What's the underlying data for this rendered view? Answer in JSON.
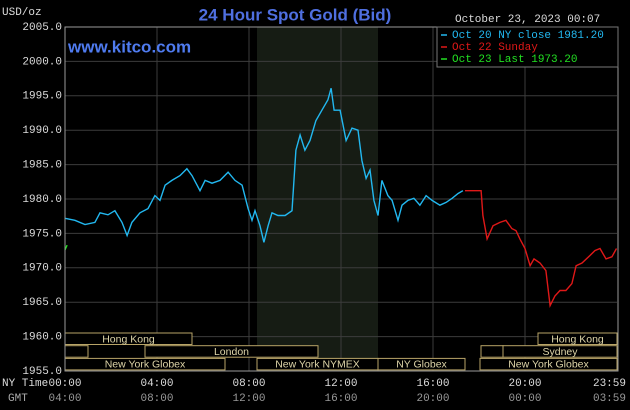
{
  "chart_data": {
    "type": "line",
    "title": "24 Hour Spot Gold (Bid)",
    "y_unit": "USD/oz",
    "timestamp": "October 23, 2023 00:07",
    "watermark": "www.kitco.com",
    "row_labels": [
      "NY Time",
      "GMT"
    ],
    "xlim": [
      0,
      24
    ],
    "xticks": [
      {
        "value": 0,
        "label": "00:00"
      },
      {
        "value": 4,
        "label": "04:00"
      },
      {
        "value": 8,
        "label": "08:00"
      },
      {
        "value": 12,
        "label": "12:00"
      },
      {
        "value": 16,
        "label": "16:00"
      },
      {
        "value": 20,
        "label": "20:00"
      },
      {
        "value": 23.98,
        "label": "23:59"
      }
    ],
    "gmt_ticks": [
      "04:00",
      "08:00",
      "12:00",
      "16:00",
      "20:00",
      "00:00",
      "03:59"
    ],
    "ylim": [
      1955,
      2005
    ],
    "yticks": [
      {
        "value": 1955,
        "label": "1955.0"
      },
      {
        "value": 1960,
        "label": "1960.0"
      },
      {
        "value": 1965,
        "label": "1965.0"
      },
      {
        "value": 1970,
        "label": "1970.0"
      },
      {
        "value": 1975,
        "label": "1975.0"
      },
      {
        "value": 1980,
        "label": "1980.0"
      },
      {
        "value": 1985,
        "label": "1985.0"
      },
      {
        "value": 1990,
        "label": "1990.0"
      },
      {
        "value": 1995,
        "label": "1995.0"
      },
      {
        "value": 2000,
        "label": "2000.0"
      },
      {
        "value": 2005,
        "label": "2005.0"
      }
    ],
    "grid": true,
    "sessions": [
      "Hong Kong",
      "London",
      "New York Globex",
      "New York NYMEX",
      "NY Globex",
      "Hong Kong",
      "Sydney",
      "New York Globex"
    ],
    "series": [
      {
        "name": "Oct 20 NY close 1981.20",
        "color": "#22b8f0",
        "x": [
          0,
          0.43,
          0.87,
          1.3,
          1.52,
          1.87,
          2.17,
          2.48,
          2.7,
          2.91,
          3.26,
          3.61,
          3.91,
          4.13,
          4.35,
          4.65,
          5.0,
          5.3,
          5.52,
          5.87,
          6.09,
          6.39,
          6.74,
          7.09,
          7.39,
          7.7,
          7.96,
          8.13,
          8.26,
          8.48,
          8.65,
          8.83,
          9.0,
          9.26,
          9.57,
          9.87,
          10.04,
          10.22,
          10.43,
          10.65,
          10.91,
          11.17,
          11.43,
          11.57,
          11.7,
          11.96,
          12.22,
          12.48,
          12.74,
          12.91,
          13.09,
          13.26,
          13.43,
          13.61,
          13.78,
          14.04,
          14.22,
          14.48,
          14.65,
          14.91,
          15.17,
          15.43,
          15.7,
          15.96,
          16.3,
          16.57,
          16.83,
          17.09,
          17.3
        ],
        "values": [
          1977.2,
          1976.9,
          1976.3,
          1976.6,
          1978.0,
          1977.7,
          1978.3,
          1976.6,
          1974.7,
          1976.6,
          1978.0,
          1978.6,
          1980.5,
          1979.8,
          1982.0,
          1982.7,
          1983.4,
          1984.4,
          1983.4,
          1981.2,
          1982.7,
          1982.3,
          1982.7,
          1983.9,
          1982.7,
          1982.0,
          1978.6,
          1976.9,
          1978.3,
          1976.1,
          1973.7,
          1976.1,
          1978.0,
          1977.6,
          1977.6,
          1978.3,
          1987.1,
          1989.3,
          1987.1,
          1988.5,
          1991.4,
          1992.9,
          1994.4,
          1996.1,
          1992.9,
          1992.9,
          1988.5,
          1990.3,
          1990.0,
          1985.6,
          1983.0,
          1984.2,
          1979.8,
          1977.6,
          1982.7,
          1980.5,
          1979.8,
          1976.9,
          1979.1,
          1979.8,
          1980.1,
          1979.1,
          1980.5,
          1979.8,
          1979.1,
          1979.5,
          1980.1,
          1980.8,
          1981.2
        ]
      },
      {
        "name": "Oct 22 Sunday",
        "color": "#e01818",
        "x": [
          17.39,
          18.09,
          18.17,
          18.35,
          18.61,
          18.91,
          19.17,
          19.43,
          19.61,
          19.78,
          20.0,
          20.22,
          20.39,
          20.65,
          20.91,
          21.09,
          21.3,
          21.52,
          21.78,
          22.04,
          22.22,
          22.48,
          22.83,
          23.04,
          23.26,
          23.52,
          23.78,
          23.98
        ],
        "values": [
          1981.2,
          1981.2,
          1977.6,
          1974.2,
          1976.1,
          1976.6,
          1976.9,
          1975.7,
          1975.4,
          1974.2,
          1972.8,
          1970.3,
          1971.3,
          1970.7,
          1969.6,
          1964.5,
          1965.9,
          1966.7,
          1966.7,
          1967.7,
          1970.3,
          1970.7,
          1971.8,
          1972.5,
          1972.8,
          1971.3,
          1971.6,
          1972.8
        ]
      },
      {
        "name": "Oct 23 Last 1973.20",
        "color": "#22e022",
        "x": [
          0,
          0.09
        ],
        "values": [
          1972.6,
          1973.3
        ]
      }
    ]
  }
}
